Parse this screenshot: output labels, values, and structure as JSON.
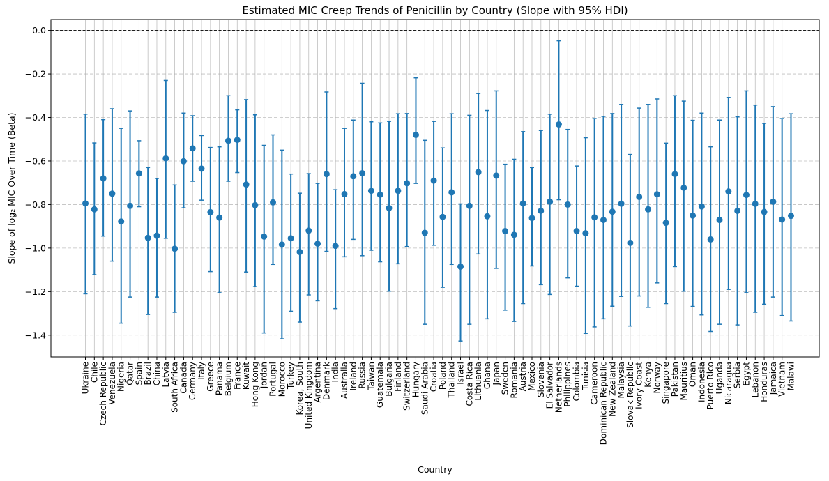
{
  "chart_data": {
    "type": "scatter",
    "title": "Estimated MIC Creep Trends of Penicillin by Country (Slope with 95% HDI)",
    "xlabel": "Country",
    "ylabel": "Slope of log₂ MIC Over Time (Beta)",
    "ylim": [
      -1.5,
      0.05
    ],
    "yticks": [
      0.0,
      -0.2,
      -0.4,
      -0.6,
      -0.8,
      -1.0,
      -1.2,
      -1.4
    ],
    "ytick_labels": [
      "0.0",
      "−0.2",
      "−0.4",
      "−0.6",
      "−0.8",
      "−1.0",
      "−1.2",
      "−1.4"
    ],
    "reference_line": {
      "y": 0,
      "style": "dashed",
      "color": "#000000"
    },
    "grid": true,
    "marker_color": "#1f77b4",
    "categories": [
      "Ukraine",
      "Chile",
      "Czech Republic",
      "Venezuela",
      "Nigeria",
      "Qatar",
      "Spain",
      "Brazil",
      "China",
      "Latvia",
      "South Africa",
      "Canada",
      "Germany",
      "Italy",
      "Greece",
      "Panama",
      "Belgium",
      "France",
      "Kuwait",
      "Hong Kong",
      "Jordan",
      "Portugal",
      "Morocco",
      "Turkey",
      "Korea, South",
      "United Kingdom",
      "Argentina",
      "Denmark",
      "India",
      "Australia",
      "Ireland",
      "Russia",
      "Taiwan",
      "Guatemala",
      "Bulgaria",
      "Finland",
      "Switzerland",
      "Hungary",
      "Saudi Arabia",
      "Croatia",
      "Poland",
      "Thailand",
      "Israel",
      "Costa Rica",
      "Lithuania",
      "Ghana",
      "Japan",
      "Sweden",
      "Romania",
      "Austria",
      "Mexico",
      "Slovenia",
      "El Salvador",
      "Netherlands",
      "Philippines",
      "Colombia",
      "Tunisia",
      "Cameroon",
      "Dominican Republic",
      "New Zealand",
      "Malaysia",
      "Slovak Republic",
      "Ivory Coast",
      "Kenya",
      "Norway",
      "Singapore",
      "Pakistan",
      "Mauritius",
      "Oman",
      "Indonesia",
      "Puerto Rico",
      "Uganda",
      "Nicaragua",
      "Serbia",
      "Egypt",
      "Lebanon",
      "Honduras",
      "Jamaica",
      "Vietnam",
      "Malawi"
    ],
    "values": [
      -0.795,
      -0.822,
      -0.68,
      -0.75,
      -0.878,
      -0.806,
      -0.657,
      -0.953,
      -0.943,
      -0.588,
      -1.003,
      -0.601,
      -0.542,
      -0.635,
      -0.835,
      -0.86,
      -0.507,
      -0.503,
      -0.708,
      -0.803,
      -0.947,
      -0.79,
      -0.984,
      -0.955,
      -1.018,
      -0.92,
      -0.98,
      -0.66,
      -0.99,
      -0.752,
      -0.67,
      -0.656,
      -0.737,
      -0.755,
      -0.816,
      -0.737,
      -0.702,
      -0.48,
      -0.93,
      -0.69,
      -0.857,
      -0.744,
      -1.085,
      -0.806,
      -0.651,
      -0.854,
      -0.667,
      -0.922,
      -0.939,
      -0.795,
      -0.862,
      -0.829,
      -0.787,
      -0.432,
      -0.8,
      -0.922,
      -0.932,
      -0.859,
      -0.871,
      -0.833,
      -0.796,
      -0.976,
      -0.765,
      -0.822,
      -0.753,
      -0.884,
      -0.66,
      -0.723,
      -0.851,
      -0.809,
      -0.96,
      -0.871,
      -0.74,
      -0.829,
      -0.756,
      -0.797,
      -0.834,
      -0.787,
      -0.869,
      -0.852
    ],
    "lower": [
      -1.21,
      -1.122,
      -0.945,
      -1.06,
      -1.345,
      -1.225,
      -0.81,
      -1.305,
      -1.225,
      -0.955,
      -1.295,
      -0.815,
      -0.693,
      -0.78,
      -1.108,
      -1.205,
      -0.693,
      -0.653,
      -1.11,
      -1.177,
      -1.39,
      -1.075,
      -1.417,
      -1.29,
      -1.34,
      -1.215,
      -1.242,
      -1.015,
      -1.278,
      -1.04,
      -0.96,
      -1.035,
      -1.01,
      -1.063,
      -1.198,
      -1.072,
      -0.993,
      -0.703,
      -1.35,
      -0.987,
      -1.18,
      -1.075,
      -1.427,
      -1.35,
      -1.027,
      -1.325,
      -1.093,
      -1.285,
      -1.337,
      -1.255,
      -1.082,
      -1.168,
      -1.213,
      -0.778,
      -1.137,
      -1.175,
      -1.392,
      -1.362,
      -1.325,
      -1.267,
      -1.222,
      -1.358,
      -1.22,
      -1.272,
      -1.16,
      -1.255,
      -1.085,
      -1.198,
      -1.268,
      -1.307,
      -1.383,
      -1.35,
      -1.19,
      -1.353,
      -1.205,
      -1.295,
      -1.258,
      -1.225,
      -1.31,
      -1.335
    ],
    "upper": [
      -0.385,
      -0.517,
      -0.41,
      -0.36,
      -0.45,
      -0.37,
      -0.507,
      -0.63,
      -0.68,
      -0.23,
      -0.71,
      -0.38,
      -0.392,
      -0.483,
      -0.538,
      -0.535,
      -0.3,
      -0.365,
      -0.318,
      -0.388,
      -0.528,
      -0.48,
      -0.55,
      -0.66,
      -0.748,
      -0.658,
      -0.703,
      -0.283,
      -0.732,
      -0.45,
      -0.412,
      -0.243,
      -0.42,
      -0.425,
      -0.418,
      -0.383,
      -0.382,
      -0.218,
      -0.505,
      -0.418,
      -0.54,
      -0.383,
      -0.797,
      -0.39,
      -0.29,
      -0.368,
      -0.278,
      -0.615,
      -0.592,
      -0.465,
      -0.63,
      -0.46,
      -0.385,
      -0.048,
      -0.455,
      -0.623,
      -0.493,
      -0.405,
      -0.395,
      -0.382,
      -0.34,
      -0.57,
      -0.357,
      -0.34,
      -0.315,
      -0.518,
      -0.3,
      -0.325,
      -0.413,
      -0.38,
      -0.535,
      -0.412,
      -0.308,
      -0.397,
      -0.278,
      -0.343,
      -0.427,
      -0.35,
      -0.405,
      -0.383
    ]
  }
}
